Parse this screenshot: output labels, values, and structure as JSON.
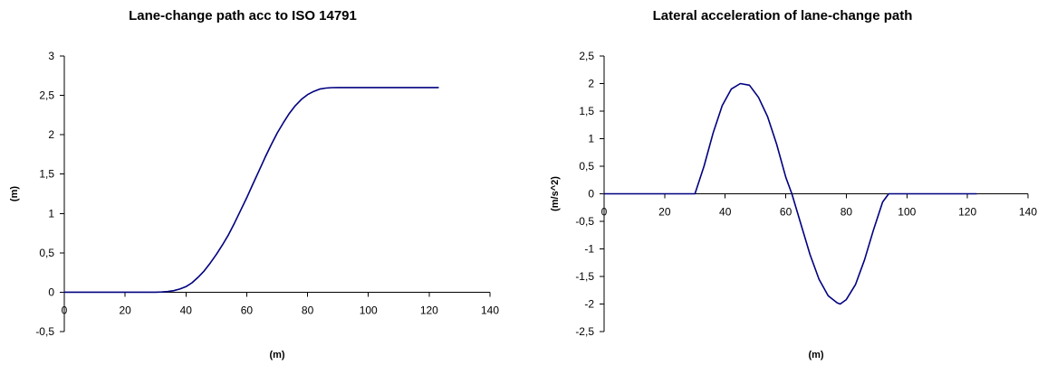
{
  "chart_data": [
    {
      "type": "line",
      "title": "Lane-change path acc to ISO 14791",
      "xlabel": "(m)",
      "ylabel": "(m)",
      "xlim": [
        0,
        140
      ],
      "ylim": [
        -0.5,
        3
      ],
      "xticks": [
        0,
        20,
        40,
        60,
        80,
        100,
        120,
        140
      ],
      "yticks": [
        -0.5,
        0,
        0.5,
        1,
        1.5,
        2,
        2.5,
        3
      ],
      "xtick_labels": [
        "0",
        "20",
        "40",
        "60",
        "80",
        "100",
        "120",
        "140"
      ],
      "ytick_labels": [
        "-0,5",
        "0",
        "0,5",
        "1",
        "1,5",
        "2",
        "2,5",
        "3"
      ],
      "grid": false,
      "color": "#000080",
      "series": [
        {
          "x": [
            0,
            10,
            20,
            30,
            32,
            34,
            36,
            38,
            40,
            42,
            44,
            46,
            48,
            50,
            52,
            54,
            56,
            58,
            60,
            62,
            64,
            66,
            68,
            70,
            72,
            74,
            76,
            78,
            80,
            82,
            84,
            86,
            88,
            90,
            92,
            100,
            110,
            123
          ],
          "y": [
            0,
            0,
            0,
            0,
            0.003,
            0.008,
            0.02,
            0.04,
            0.07,
            0.12,
            0.19,
            0.27,
            0.37,
            0.48,
            0.6,
            0.73,
            0.88,
            1.04,
            1.2,
            1.37,
            1.54,
            1.71,
            1.87,
            2.02,
            2.15,
            2.27,
            2.37,
            2.45,
            2.51,
            2.55,
            2.58,
            2.593,
            2.598,
            2.6,
            2.6,
            2.6,
            2.6,
            2.6
          ]
        }
      ]
    },
    {
      "type": "line",
      "title": "Lateral acceleration of lane-change path",
      "xlabel": "(m)",
      "ylabel": "(m/s^2)",
      "xlim": [
        0,
        140
      ],
      "ylim": [
        -2.5,
        2.5
      ],
      "xticks": [
        0,
        20,
        40,
        60,
        80,
        100,
        120,
        140
      ],
      "yticks": [
        -2.5,
        -2,
        -1.5,
        -1,
        -0.5,
        0,
        0.5,
        1,
        1.5,
        2,
        2.5
      ],
      "xtick_labels": [
        "0",
        "20",
        "40",
        "60",
        "80",
        "100",
        "120",
        "140"
      ],
      "ytick_labels": [
        "-2,5",
        "-2",
        "-1,5",
        "-1",
        "-0,5",
        "0",
        "0,5",
        "1",
        "1,5",
        "2",
        "2,5"
      ],
      "grid": false,
      "color": "#000080",
      "series": [
        {
          "x": [
            0,
            10,
            20,
            30,
            33,
            36,
            39,
            42,
            45,
            48,
            51,
            54,
            57,
            60,
            62,
            65,
            68,
            71,
            74,
            77,
            78,
            80,
            83,
            86,
            89,
            92,
            94,
            96,
            100,
            110,
            123
          ],
          "y": [
            0,
            0,
            0,
            0,
            0.5,
            1.1,
            1.6,
            1.9,
            2.0,
            1.97,
            1.75,
            1.4,
            0.9,
            0.3,
            0,
            -0.55,
            -1.1,
            -1.55,
            -1.85,
            -1.98,
            -2.0,
            -1.92,
            -1.65,
            -1.2,
            -0.65,
            -0.15,
            0,
            0,
            0,
            0,
            0
          ]
        }
      ]
    }
  ]
}
